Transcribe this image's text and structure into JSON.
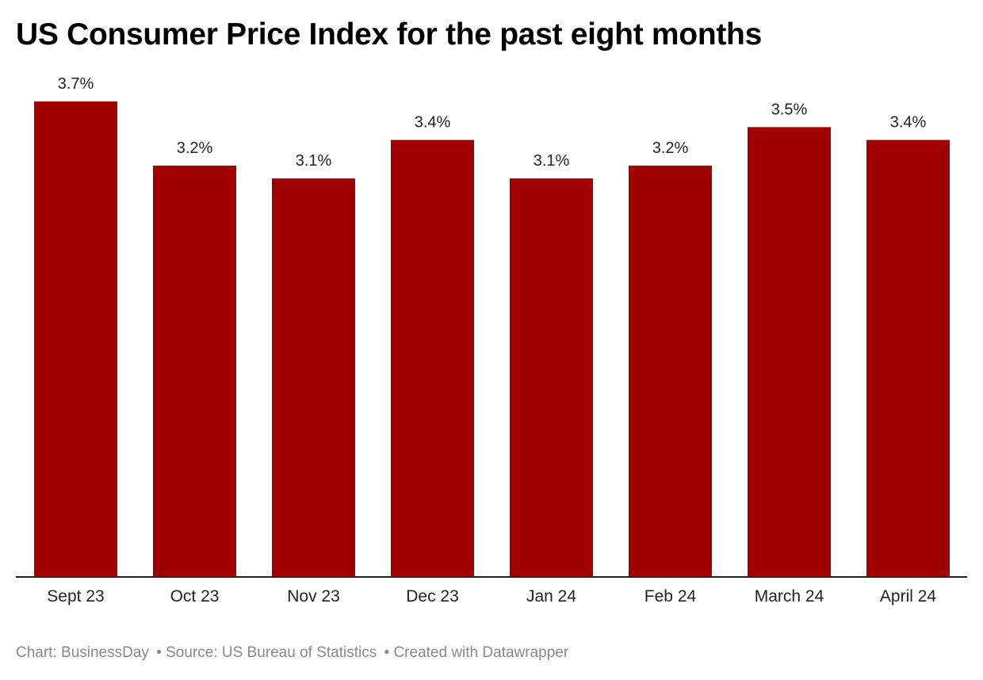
{
  "chart_data": {
    "type": "bar",
    "title": "US Consumer Price Index for the past eight months",
    "categories": [
      "Sept 23",
      "Oct 23",
      "Nov 23",
      "Dec 23",
      "Jan 24",
      "Feb 24",
      "March 24",
      "April 24"
    ],
    "values": [
      3.7,
      3.2,
      3.1,
      3.4,
      3.1,
      3.2,
      3.5,
      3.4
    ],
    "data_labels": [
      "3.7%",
      "3.2%",
      "3.1%",
      "3.4%",
      "3.1%",
      "3.2%",
      "3.5%",
      "3.4%"
    ],
    "ylim": [
      0,
      3.7
    ],
    "xlabel": "",
    "ylabel": "",
    "grid": false,
    "bar_color": "#a00000"
  },
  "footer": {
    "chart": "Chart: BusinessDay",
    "source": "• Source: US Bureau of Statistics",
    "created": "• Created with Datawrapper"
  }
}
